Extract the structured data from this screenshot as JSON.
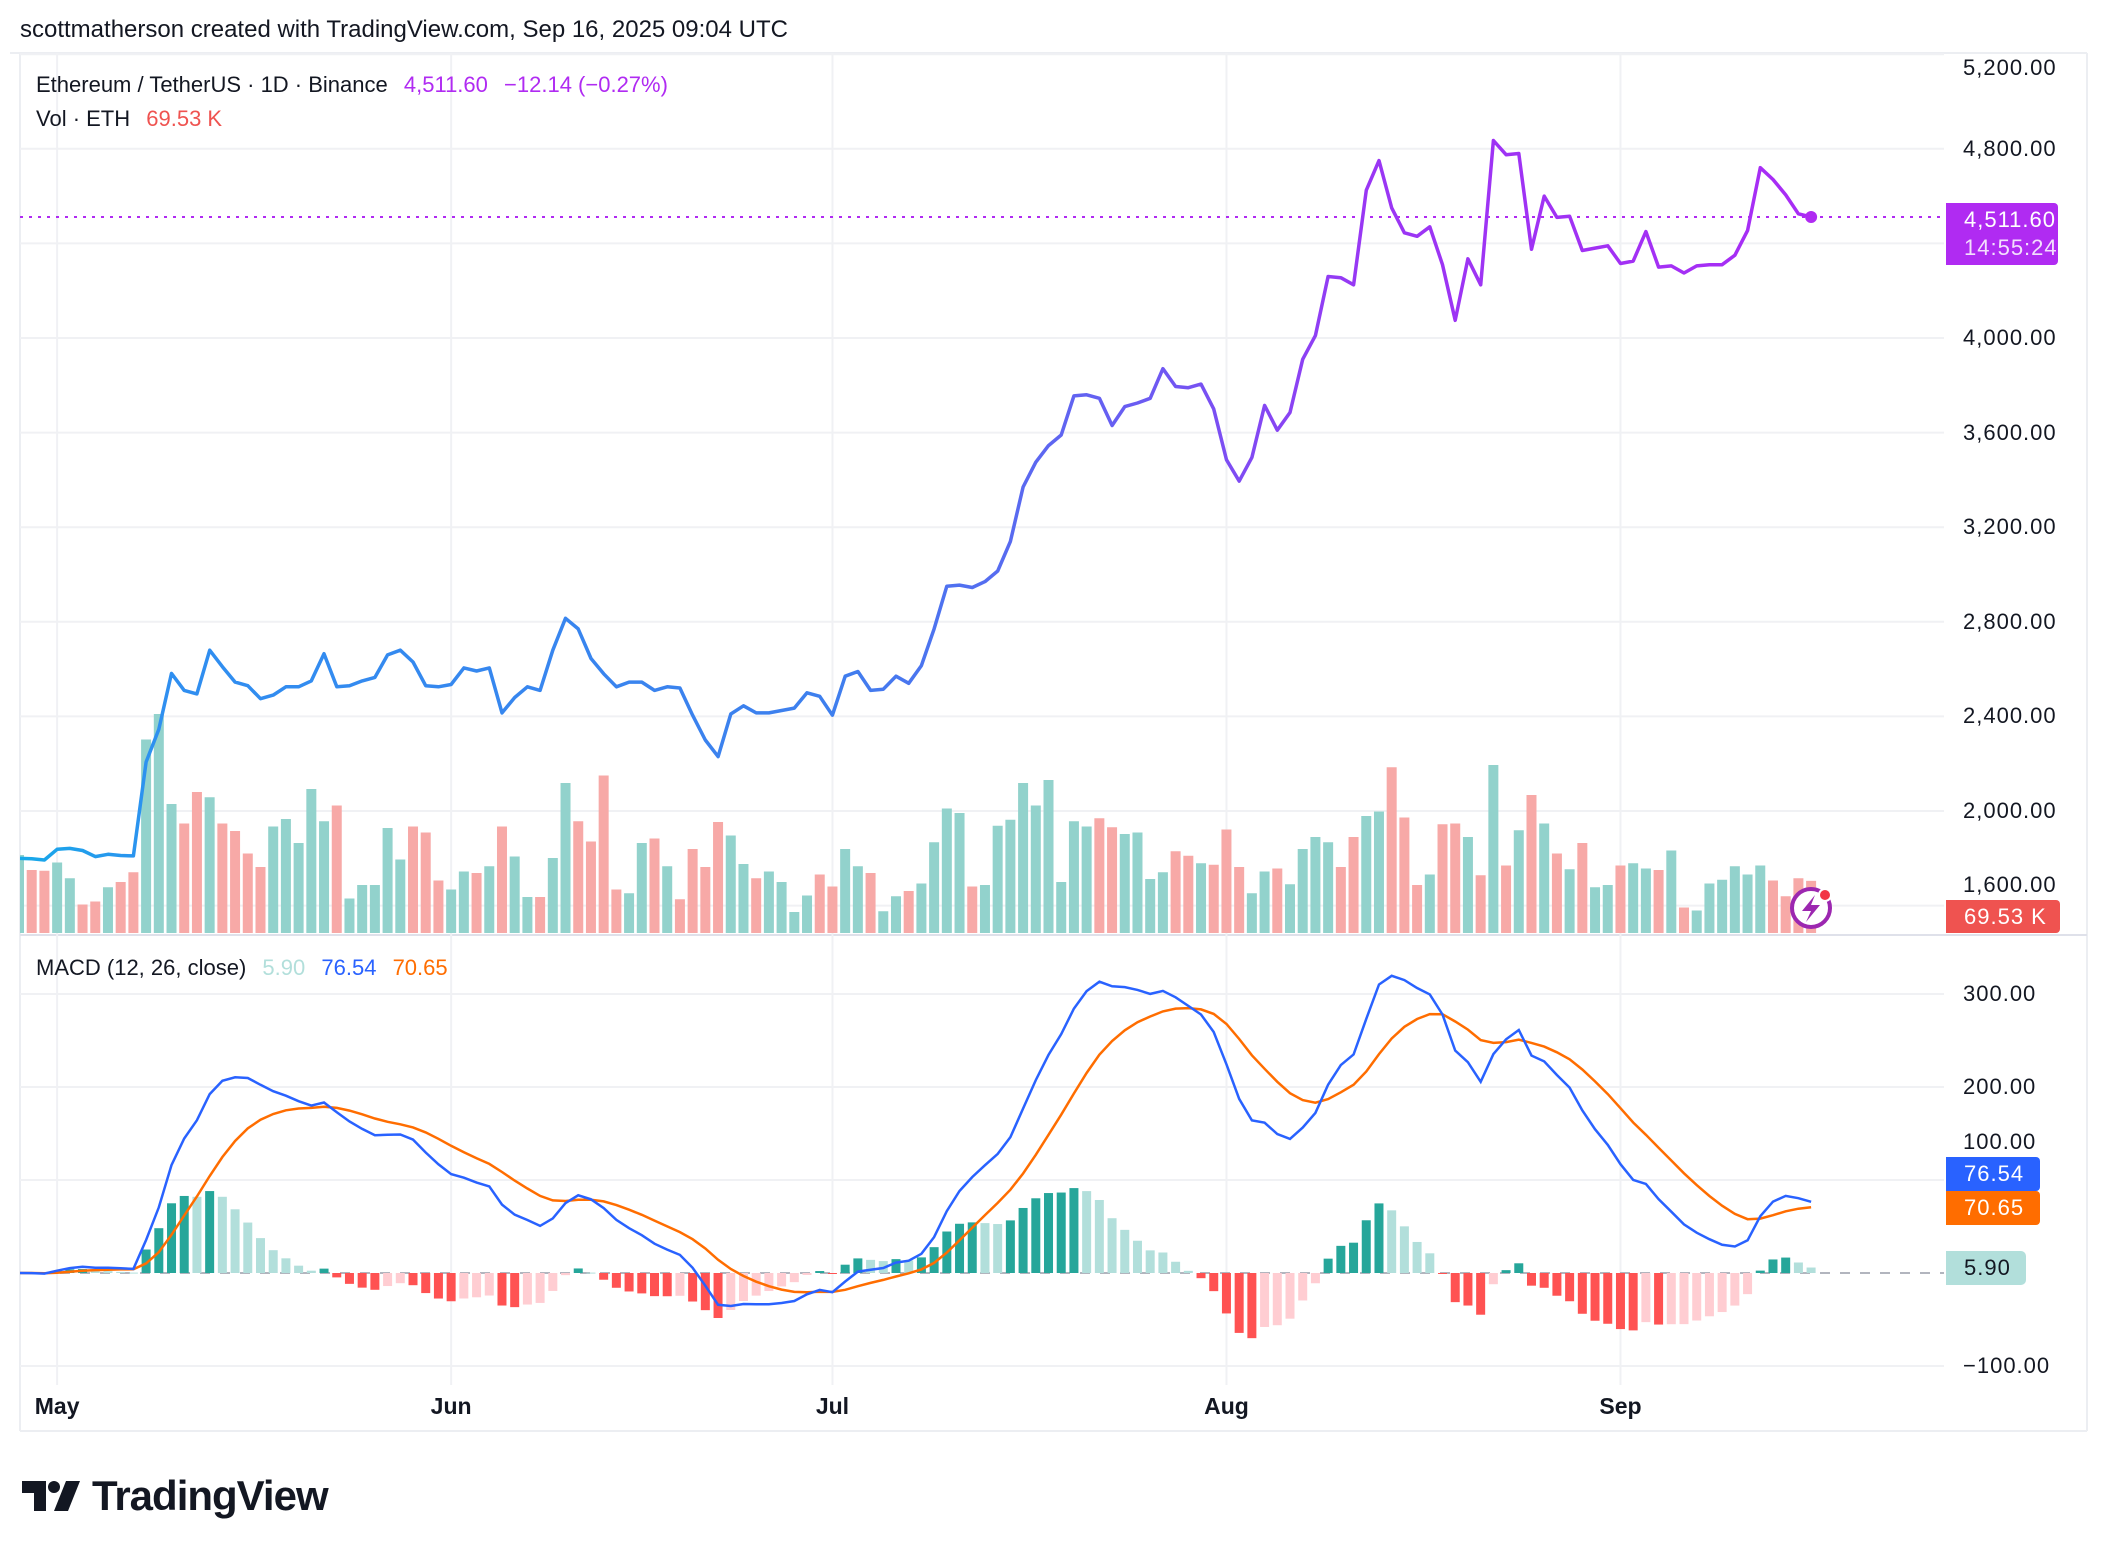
{
  "header": {
    "attribution": "scottmatherson created with TradingView.com, Sep 16, 2025 09:04 UTC"
  },
  "legend": {
    "symbol": "Ethereum / TetherUS · 1D · Binance",
    "last_price": "4,511.60",
    "change": "−12.14 (−0.27%)",
    "volume_label": "Vol · ETH",
    "volume_value": "69.53 K",
    "macd_label": "MACD (12, 26, close)",
    "macd_hist": "5.90",
    "macd_value": "76.54",
    "macd_signal": "70.65"
  },
  "tags": {
    "price": "4,511.60",
    "countdown": "14:55:24",
    "volume": "69.53 K",
    "macd": "76.54",
    "signal": "70.65",
    "hist": "5.90"
  },
  "colors": {
    "price_line_start": "#17a9e9",
    "price_line_end": "#a92cf5",
    "price_tag": "#b02bf2",
    "volume_up": "#92d2cc",
    "volume_down": "#f7a9a7",
    "volume_tag": "#ef5350",
    "macd": "#2962ff",
    "signal": "#ff6d00",
    "hist_up_strong": "#26a69a",
    "hist_up_weak": "#b2dfdb",
    "hist_down_strong": "#ff5252",
    "hist_down_weak": "#ffcdd2"
  },
  "icons": {
    "alert": "lightning-icon",
    "logo": "tradingview-logo"
  },
  "logo": {
    "text": "TradingView"
  },
  "chart_data": {
    "type": "line",
    "title": "Ethereum / TetherUS · 1D · Binance",
    "price_axis": {
      "ticks": [
        {
          "v": 5200,
          "label": "5,200.00"
        },
        {
          "v": 4800,
          "label": "4,800.00"
        },
        {
          "v": 4000,
          "label": "4,000.00"
        },
        {
          "v": 3600,
          "label": "3,600.00"
        },
        {
          "v": 3200,
          "label": "3,200.00"
        },
        {
          "v": 2800,
          "label": "2,800.00"
        },
        {
          "v": 2400,
          "label": "2,400.00"
        },
        {
          "v": 2000,
          "label": "2,000.00"
        },
        {
          "v": 1600,
          "label": "1,600.00"
        }
      ],
      "grid": [
        5200,
        4800,
        4400,
        4000,
        3600,
        3200,
        2800,
        2400,
        2000,
        1600
      ]
    },
    "macd_axis": {
      "ticks": [
        {
          "v": 300,
          "label": "300.00"
        },
        {
          "v": 200,
          "label": "200.00"
        },
        {
          "v": 100,
          "label": "100.00"
        },
        {
          "v": -100,
          "label": "−100.00"
        }
      ],
      "grid": [
        300,
        200,
        100,
        -100
      ]
    },
    "time_axis": [
      {
        "date": "2025-05-01",
        "label": "May"
      },
      {
        "date": "2025-06-01",
        "label": "Jun"
      },
      {
        "date": "2025-07-01",
        "label": "Jul"
      },
      {
        "date": "2025-08-01",
        "label": "Aug"
      },
      {
        "date": "2025-09-01",
        "label": "Sep"
      }
    ],
    "grid": true,
    "macd_params": {
      "fast": 12,
      "slow": 26,
      "source": "close"
    },
    "x_range": [
      "2025-04-28",
      "2025-09-16"
    ],
    "close": [
      1800,
      1798,
      1793,
      1838,
      1842,
      1833,
      1807,
      1817,
      1812,
      1810,
      2207,
      2345,
      2582,
      2510,
      2495,
      2680,
      2610,
      2545,
      2530,
      2475,
      2490,
      2525,
      2525,
      2550,
      2665,
      2525,
      2530,
      2550,
      2565,
      2660,
      2680,
      2630,
      2530,
      2525,
      2535,
      2605,
      2592,
      2605,
      2415,
      2480,
      2525,
      2510,
      2680,
      2815,
      2770,
      2645,
      2580,
      2525,
      2545,
      2545,
      2510,
      2525,
      2520,
      2405,
      2300,
      2230,
      2410,
      2445,
      2415,
      2415,
      2425,
      2435,
      2500,
      2485,
      2405,
      2570,
      2590,
      2510,
      2515,
      2570,
      2540,
      2615,
      2770,
      2950,
      2955,
      2945,
      2970,
      3015,
      3140,
      3370,
      3475,
      3545,
      3590,
      3755,
      3760,
      3745,
      3630,
      3710,
      3725,
      3745,
      3870,
      3795,
      3790,
      3805,
      3700,
      3485,
      3395,
      3495,
      3715,
      3610,
      3685,
      3910,
      4010,
      4260,
      4255,
      4225,
      4625,
      4750,
      4550,
      4445,
      4430,
      4470,
      4310,
      4075,
      4335,
      4225,
      4835,
      4775,
      4780,
      4375,
      4600,
      4510,
      4515,
      4370,
      4380,
      4390,
      4315,
      4325,
      4450,
      4300,
      4305,
      4275,
      4305,
      4310,
      4310,
      4350,
      4455,
      4720,
      4670,
      4605,
      4525,
      4511.6
    ],
    "volume_k": [
      104,
      84,
      83,
      94,
      73,
      38,
      42,
      61,
      68,
      81,
      258,
      292,
      172,
      146,
      188,
      181,
      146,
      136,
      106,
      88,
      142,
      152,
      120,
      192,
      149,
      170,
      46,
      64,
      64,
      140,
      98,
      142,
      134,
      70,
      58,
      82,
      80,
      89,
      142,
      102,
      48,
      48,
      100,
      200,
      149,
      122,
      210,
      58,
      53,
      120,
      126,
      89,
      45,
      112,
      88,
      148,
      130,
      92,
      73,
      82,
      68,
      28,
      50,
      78,
      62,
      112,
      89,
      80,
      29,
      49,
      56,
      66,
      121,
      166,
      160,
      62,
      64,
      143,
      151,
      200,
      170,
      204,
      68,
      149,
      142,
      153,
      141,
      132,
      134,
      72,
      81,
      109,
      103,
      93,
      91,
      138,
      88,
      53,
      82,
      86,
      65,
      112,
      128,
      121,
      88,
      128,
      156,
      162,
      221,
      154,
      64,
      78,
      145,
      146,
      128,
      77,
      224,
      90,
      137,
      184,
      146,
      106,
      85,
      120,
      61,
      64,
      90,
      93,
      86,
      84,
      110,
      34,
      30,
      66,
      71,
      89,
      78,
      90,
      70,
      49,
      73,
      69.53
    ],
    "last": {
      "price": 4511.6,
      "volume_k": 69.53,
      "macd": 76.54,
      "signal": 70.65,
      "hist": 5.9
    }
  }
}
